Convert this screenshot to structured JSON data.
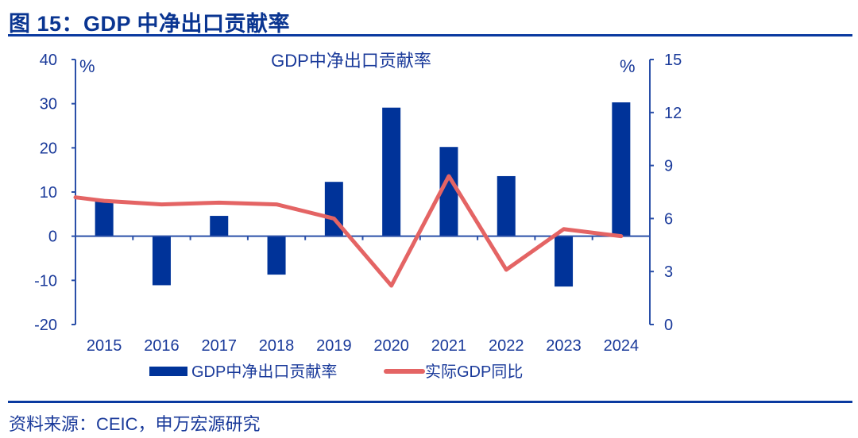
{
  "figure": {
    "title": "图 15：GDP 中净出口贡献率",
    "source": "资料来源：CEIC，申万宏源研究"
  },
  "colors": {
    "bar": "#003399",
    "line": "#e46464",
    "axis": "#2a4fa8",
    "text": "#1a3a9a"
  },
  "chart_data": {
    "type": "bar+line",
    "title": "GDP中净出口贡献率",
    "categories": [
      "2015",
      "2016",
      "2017",
      "2018",
      "2019",
      "2020",
      "2021",
      "2022",
      "2023",
      "2024"
    ],
    "series": [
      {
        "name": "GDP中净出口贡献率",
        "type": "bar",
        "axis": "left",
        "values": [
          8.1,
          -11.1,
          4.6,
          -8.7,
          12.3,
          29.1,
          20.2,
          13.6,
          -11.4,
          30.3
        ]
      },
      {
        "name": "实际GDP同比",
        "type": "line",
        "axis": "right",
        "values": [
          7.0,
          6.8,
          6.9,
          6.8,
          6.0,
          2.2,
          8.4,
          3.1,
          5.4,
          5.0
        ],
        "start_value": 7.2
      }
    ],
    "left_axis": {
      "unit": "%",
      "min": -20,
      "max": 40,
      "ticks": [
        40,
        30,
        20,
        10,
        0,
        -10,
        -20
      ]
    },
    "right_axis": {
      "unit": "%",
      "min": 0,
      "max": 15,
      "ticks": [
        15,
        12,
        9,
        6,
        3,
        0
      ]
    },
    "legend": {
      "position": "bottom",
      "entries": [
        "GDP中净出口贡献率",
        "实际GDP同比"
      ]
    },
    "grid": false
  }
}
